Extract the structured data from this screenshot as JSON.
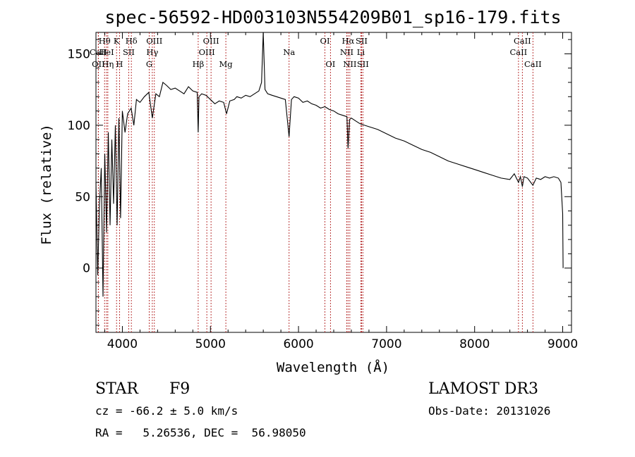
{
  "chart_data": {
    "type": "line",
    "title": "spec-56592-HD003103N554209B01_sp16-179.fits",
    "xlabel": "Wavelength (Å)",
    "ylabel": "Flux (relative)",
    "xlim": [
      3700,
      9100
    ],
    "ylim": [
      -45,
      165
    ],
    "x_ticks": [
      4000,
      5000,
      6000,
      7000,
      8000,
      9000
    ],
    "x_tick_labels": [
      "4000",
      "5000",
      "6000",
      "7000",
      "8000",
      "9000"
    ],
    "y_ticks": [
      0,
      50,
      100,
      150
    ],
    "y_tick_labels": [
      "0",
      "50",
      "100",
      "150"
    ],
    "series": [
      {
        "name": "flux",
        "x": [
          3700,
          3720,
          3740,
          3760,
          3780,
          3800,
          3820,
          3840,
          3860,
          3880,
          3900,
          3920,
          3940,
          3960,
          3980,
          4000,
          4030,
          4060,
          4100,
          4130,
          4160,
          4200,
          4250,
          4300,
          4340,
          4380,
          4420,
          4460,
          4500,
          4550,
          4600,
          4650,
          4700,
          4750,
          4800,
          4850,
          4861,
          4870,
          4900,
          4950,
          5000,
          5050,
          5100,
          5150,
          5183,
          5220,
          5270,
          5300,
          5350,
          5400,
          5450,
          5500,
          5550,
          5580,
          5600,
          5620,
          5650,
          5700,
          5750,
          5800,
          5850,
          5893,
          5920,
          5950,
          6000,
          6050,
          6100,
          6150,
          6200,
          6250,
          6300,
          6350,
          6400,
          6450,
          6500,
          6550,
          6563,
          6580,
          6600,
          6650,
          6700,
          6750,
          6800,
          6850,
          6900,
          7000,
          7100,
          7200,
          7300,
          7400,
          7500,
          7600,
          7700,
          7800,
          7900,
          8000,
          8100,
          8200,
          8300,
          8400,
          8450,
          8498,
          8520,
          8542,
          8560,
          8600,
          8662,
          8700,
          8750,
          8800,
          8850,
          8900,
          8950,
          8980,
          9000,
          9005
        ],
        "y": [
          60,
          -5,
          45,
          70,
          -20,
          80,
          25,
          95,
          30,
          90,
          45,
          100,
          30,
          105,
          35,
          110,
          95,
          108,
          112,
          100,
          118,
          116,
          120,
          123,
          105,
          122,
          120,
          130,
          128,
          125,
          126,
          124,
          122,
          127,
          124,
          123,
          95,
          120,
          122,
          121,
          118,
          115,
          117,
          116,
          108,
          117,
          118,
          120,
          119,
          121,
          120,
          122,
          124,
          130,
          165,
          125,
          122,
          121,
          120,
          119,
          118,
          92,
          118,
          120,
          119,
          116,
          117,
          115,
          114,
          112,
          113,
          111,
          110,
          108,
          107,
          106,
          84,
          104,
          105,
          103,
          101,
          100,
          99,
          98,
          97,
          94,
          91,
          89,
          86,
          83,
          81,
          78,
          75,
          73,
          71,
          69,
          67,
          65,
          63,
          62,
          66,
          60,
          64,
          57,
          64,
          63,
          58,
          63,
          62,
          64,
          63,
          64,
          63,
          60,
          38,
          0
        ]
      }
    ],
    "spectral_lines": [
      {
        "label": "Hθ",
        "wavelength": 3798,
        "row": 1
      },
      {
        "label": "CaII",
        "wavelength": 3727,
        "row": 2
      },
      {
        "label": "OII",
        "wavelength": 3727,
        "row": 3
      },
      {
        "label": "HeI",
        "wavelength": 3820,
        "row": 2
      },
      {
        "label": "Hη",
        "wavelength": 3835,
        "row": 3
      },
      {
        "label": "K",
        "wavelength": 3934,
        "row": 1
      },
      {
        "label": "SII",
        "wavelength": 4072,
        "row": 2
      },
      {
        "label": "H",
        "wavelength": 3968,
        "row": 3
      },
      {
        "label": "Hδ",
        "wavelength": 4102,
        "row": 1
      },
      {
        "label": "OIII",
        "wavelength": 4363,
        "row": 1
      },
      {
        "label": "Hγ",
        "wavelength": 4340,
        "row": 2
      },
      {
        "label": "G",
        "wavelength": 4305,
        "row": 3
      },
      {
        "label": "OIII",
        "wavelength": 5007,
        "row": 1
      },
      {
        "label": "OIII",
        "wavelength": 4959,
        "row": 2
      },
      {
        "label": "Hβ",
        "wavelength": 4861,
        "row": 3
      },
      {
        "label": "Mg",
        "wavelength": 5175,
        "row": 3
      },
      {
        "label": "Na",
        "wavelength": 5893,
        "row": 2
      },
      {
        "label": "OI",
        "wavelength": 6300,
        "row": 1
      },
      {
        "label": "OI",
        "wavelength": 6363,
        "row": 3
      },
      {
        "label": "Hα",
        "wavelength": 6563,
        "row": 1
      },
      {
        "label": "SII",
        "wavelength": 6716,
        "row": 1
      },
      {
        "label": "NII",
        "wavelength": 6548,
        "row": 2
      },
      {
        "label": "Li",
        "wavelength": 6708,
        "row": 2
      },
      {
        "label": "NII",
        "wavelength": 6583,
        "row": 3
      },
      {
        "label": "SII",
        "wavelength": 6731,
        "row": 3
      },
      {
        "label": "CaII",
        "wavelength": 8542,
        "row": 1
      },
      {
        "label": "CaII",
        "wavelength": 8498,
        "row": 2
      },
      {
        "label": "CaII",
        "wavelength": 8662,
        "row": 3
      }
    ]
  },
  "info": {
    "object_class": "STAR",
    "subclass": "F9",
    "survey": "LAMOST DR3",
    "cz": "cz = -66.2 ± 5.0 km/s",
    "obs_date": "Obs-Date: 20131026",
    "coords": "RA =   5.26536, DEC =  56.98050"
  },
  "colors": {
    "line_marker": "#b22222",
    "spectrum": "#000000",
    "axis": "#000000"
  }
}
